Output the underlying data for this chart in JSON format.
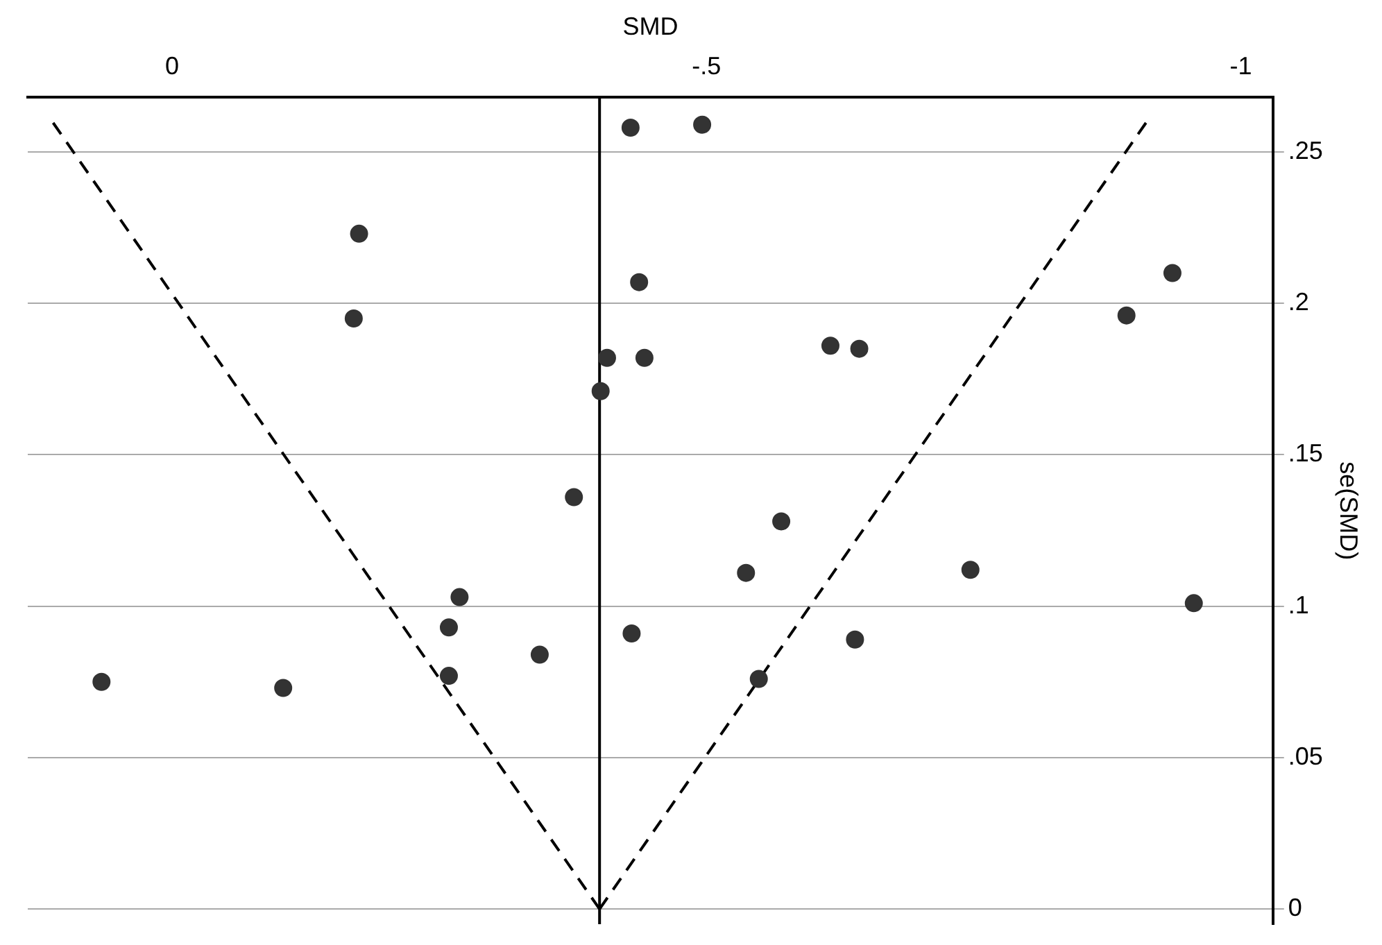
{
  "chart_data": {
    "type": "scatter",
    "xlabel": "SMD",
    "ylabel": "se(SMD)",
    "xlim": [
      0.135,
      -1.03
    ],
    "xticks": [
      0,
      {
        "value": -0.5,
        "label": "-.5"
      },
      -1
    ],
    "ylim": [
      -0.005,
      0.268
    ],
    "yticks": [
      0,
      {
        "value": 0.05,
        "label": ".05"
      },
      {
        "value": 0.1,
        "label": ".1"
      },
      {
        "value": 0.15,
        "label": ".15"
      },
      {
        "value": 0.2,
        "label": ".2"
      },
      {
        "value": 0.25,
        "label": ".25"
      }
    ],
    "grid": "y",
    "legend": false,
    "marker": "circle",
    "ref_lines": [
      {
        "axis": "x",
        "value": -0.4,
        "color": "#000000",
        "line_style": "solid"
      }
    ],
    "series": [
      {
        "type": "scatter",
        "color": "#333333",
        "x": [
          -0.429,
          -0.496,
          -0.175,
          -0.437,
          -0.936,
          -0.17,
          -0.893,
          -0.407,
          -0.442,
          -0.616,
          -0.643,
          -0.401,
          -0.376,
          -0.57,
          -0.537,
          -0.747,
          -0.269,
          -0.956,
          -0.259,
          -0.43,
          -0.639,
          -0.344,
          -0.259,
          -0.549,
          0.066,
          -0.104
        ],
        "values": [
          0.258,
          0.259,
          0.223,
          0.207,
          0.21,
          0.195,
          0.196,
          0.182,
          0.182,
          0.186,
          0.185,
          0.171,
          0.136,
          0.128,
          0.111,
          0.112,
          0.103,
          0.101,
          0.093,
          0.091,
          0.089,
          0.084,
          0.077,
          0.076,
          0.075,
          0.073
        ]
      },
      {
        "type": "line",
        "color": "#000000",
        "line_style": "dashed",
        "marker": "none",
        "x": [
          -0.4,
          0.112
        ],
        "values": [
          0,
          0.26
        ]
      },
      {
        "type": "line",
        "color": "#000000",
        "line_style": "dashed",
        "marker": "none",
        "x": [
          -0.4,
          -0.912
        ],
        "values": [
          0,
          0.26
        ]
      }
    ]
  }
}
